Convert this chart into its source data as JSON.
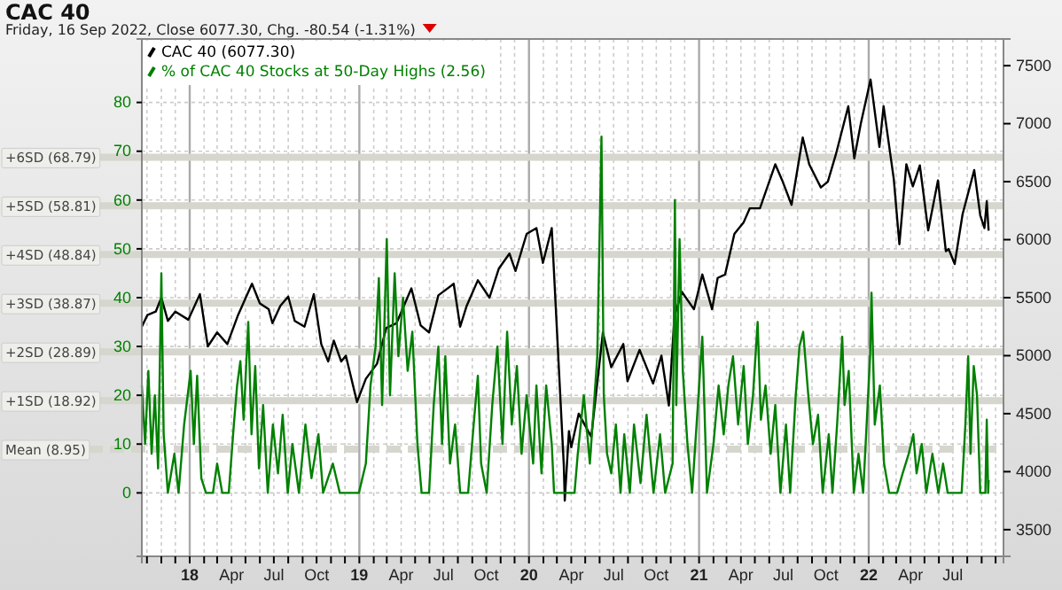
{
  "chart_data": {
    "type": "line",
    "title": "CAC 40",
    "subtitle": "Friday, 16 Sep 2022, Close 6077.30, Chg. -80.54 (-1.31%)",
    "xlim": [
      "2017-09-20",
      "2022-10-18"
    ],
    "xticks": [
      {
        "value": "2017-10-01",
        "label": null
      },
      {
        "value": "2017-11-01",
        "label": null
      },
      {
        "value": "2017-12-01",
        "label": null
      },
      {
        "value": "2018-01-01",
        "label": "18"
      },
      {
        "value": "2018-02-01",
        "label": null
      },
      {
        "value": "2018-03-01",
        "label": null
      },
      {
        "value": "2018-04-01",
        "label": "Apr"
      },
      {
        "value": "2018-05-01",
        "label": null
      },
      {
        "value": "2018-06-01",
        "label": null
      },
      {
        "value": "2018-07-01",
        "label": "Jul"
      },
      {
        "value": "2018-08-01",
        "label": null
      },
      {
        "value": "2018-09-01",
        "label": null
      },
      {
        "value": "2018-10-01",
        "label": "Oct"
      },
      {
        "value": "2018-11-01",
        "label": null
      },
      {
        "value": "2018-12-01",
        "label": null
      },
      {
        "value": "2019-01-01",
        "label": "19"
      },
      {
        "value": "2019-02-01",
        "label": null
      },
      {
        "value": "2019-03-01",
        "label": null
      },
      {
        "value": "2019-04-01",
        "label": "Apr"
      },
      {
        "value": "2019-05-01",
        "label": null
      },
      {
        "value": "2019-06-01",
        "label": null
      },
      {
        "value": "2019-07-01",
        "label": "Jul"
      },
      {
        "value": "2019-08-01",
        "label": null
      },
      {
        "value": "2019-09-01",
        "label": null
      },
      {
        "value": "2019-10-01",
        "label": "Oct"
      },
      {
        "value": "2019-11-01",
        "label": null
      },
      {
        "value": "2019-12-01",
        "label": null
      },
      {
        "value": "2020-01-01",
        "label": "20"
      },
      {
        "value": "2020-02-01",
        "label": null
      },
      {
        "value": "2020-03-01",
        "label": null
      },
      {
        "value": "2020-04-01",
        "label": "Apr"
      },
      {
        "value": "2020-05-01",
        "label": null
      },
      {
        "value": "2020-06-01",
        "label": null
      },
      {
        "value": "2020-07-01",
        "label": "Jul"
      },
      {
        "value": "2020-08-01",
        "label": null
      },
      {
        "value": "2020-09-01",
        "label": null
      },
      {
        "value": "2020-10-01",
        "label": "Oct"
      },
      {
        "value": "2020-11-01",
        "label": null
      },
      {
        "value": "2020-12-01",
        "label": null
      },
      {
        "value": "2021-01-01",
        "label": "21"
      },
      {
        "value": "2021-02-01",
        "label": null
      },
      {
        "value": "2021-03-01",
        "label": null
      },
      {
        "value": "2021-04-01",
        "label": "Apr"
      },
      {
        "value": "2021-05-01",
        "label": null
      },
      {
        "value": "2021-06-01",
        "label": null
      },
      {
        "value": "2021-07-01",
        "label": "Jul"
      },
      {
        "value": "2021-08-01",
        "label": null
      },
      {
        "value": "2021-09-01",
        "label": null
      },
      {
        "value": "2021-10-01",
        "label": "Oct"
      },
      {
        "value": "2021-11-01",
        "label": null
      },
      {
        "value": "2021-12-01",
        "label": null
      },
      {
        "value": "2022-01-01",
        "label": "22"
      },
      {
        "value": "2022-02-01",
        "label": null
      },
      {
        "value": "2022-03-01",
        "label": null
      },
      {
        "value": "2022-04-01",
        "label": "Apr"
      },
      {
        "value": "2022-05-01",
        "label": null
      },
      {
        "value": "2022-06-01",
        "label": null
      },
      {
        "value": "2022-07-01",
        "label": "Jul"
      },
      {
        "value": "2022-08-01",
        "label": null
      },
      {
        "value": "2022-09-01",
        "label": null
      },
      {
        "value": "2022-10-01",
        "label": null
      }
    ],
    "ylim": [
      -13,
      93
    ],
    "yticks": [
      0,
      10,
      20,
      30,
      40,
      50,
      60,
      70,
      80
    ],
    "y2lim": [
      3270,
      7730
    ],
    "y2ticks": [
      3500,
      4000,
      4500,
      5000,
      5500,
      6000,
      6500,
      7000,
      7500
    ],
    "grid": true,
    "legend": "top left",
    "ref_lines": [
      {
        "axis": "y",
        "value": 68.79,
        "label": "+6SD (68.79)",
        "color": "#d6d6ce"
      },
      {
        "axis": "y",
        "value": 58.81,
        "label": "+5SD (58.81)",
        "color": "#d6d6ce"
      },
      {
        "axis": "y",
        "value": 48.84,
        "label": "+4SD (48.84)",
        "color": "#d6d6ce"
      },
      {
        "axis": "y",
        "value": 38.87,
        "label": "+3SD (38.87)",
        "color": "#d6d6ce"
      },
      {
        "axis": "y",
        "value": 28.89,
        "label": "+2SD (28.89)",
        "color": "#d6d6ce"
      },
      {
        "axis": "y",
        "value": 18.92,
        "label": "+1SD (18.92)",
        "color": "#d6d6ce"
      },
      {
        "axis": "y",
        "value": 8.95,
        "label": "Mean (8.95)",
        "color": "#d6d6ce",
        "line_style": "dashed"
      }
    ],
    "series": [
      {
        "name": "CAC 40 (6077.30)",
        "color": "#000000",
        "axis": "y2",
        "x": [
          "2017-09-20",
          "2017-10-02",
          "2017-10-20",
          "2017-11-01",
          "2017-11-15",
          "2017-12-01",
          "2017-12-29",
          "2018-01-23",
          "2018-02-09",
          "2018-03-01",
          "2018-03-23",
          "2018-04-15",
          "2018-05-15",
          "2018-06-01",
          "2018-06-20",
          "2018-06-28",
          "2018-07-15",
          "2018-08-01",
          "2018-08-15",
          "2018-09-05",
          "2018-09-25",
          "2018-10-11",
          "2018-10-26",
          "2018-11-07",
          "2018-11-23",
          "2018-12-03",
          "2018-12-27",
          "2019-01-15",
          "2019-02-08",
          "2019-02-28",
          "2019-03-22",
          "2019-04-23",
          "2019-05-13",
          "2019-05-31",
          "2019-06-20",
          "2019-07-23",
          "2019-08-06",
          "2019-08-20",
          "2019-09-13",
          "2019-10-08",
          "2019-10-28",
          "2019-11-20",
          "2019-12-03",
          "2019-12-27",
          "2020-01-17",
          "2020-01-31",
          "2020-02-19",
          "2020-03-16",
          "2020-03-18",
          "2020-03-27",
          "2020-04-01",
          "2020-04-17",
          "2020-05-14",
          "2020-06-08",
          "2020-06-26",
          "2020-07-22",
          "2020-07-31",
          "2020-08-26",
          "2020-09-24",
          "2020-10-12",
          "2020-10-28",
          "2020-11-09",
          "2020-11-25",
          "2020-12-21",
          "2021-01-08",
          "2021-01-29",
          "2021-02-10",
          "2021-02-26",
          "2021-03-18",
          "2021-04-07",
          "2021-04-20",
          "2021-05-12",
          "2021-06-14",
          "2021-06-30",
          "2021-07-19",
          "2021-08-12",
          "2021-08-26",
          "2021-09-20",
          "2021-10-05",
          "2021-10-22",
          "2021-11-18",
          "2021-12-01",
          "2021-12-15",
          "2022-01-05",
          "2022-01-24",
          "2022-02-02",
          "2022-02-24",
          "2022-03-08",
          "2022-03-23",
          "2022-04-06",
          "2022-04-21",
          "2022-05-09",
          "2022-05-30",
          "2022-06-16",
          "2022-06-22",
          "2022-07-05",
          "2022-07-22",
          "2022-08-16",
          "2022-08-29",
          "2022-09-07",
          "2022-09-12",
          "2022-09-16"
        ],
        "values": [
          5250,
          5350,
          5380,
          5500,
          5300,
          5380,
          5310,
          5530,
          5080,
          5200,
          5100,
          5350,
          5620,
          5450,
          5400,
          5280,
          5430,
          5510,
          5300,
          5250,
          5530,
          5100,
          4950,
          5130,
          4950,
          5000,
          4600,
          4800,
          4930,
          5240,
          5280,
          5580,
          5260,
          5200,
          5520,
          5620,
          5250,
          5430,
          5650,
          5500,
          5750,
          5880,
          5730,
          6050,
          6100,
          5800,
          6100,
          4050,
          3750,
          4350,
          4210,
          4500,
          4300,
          5200,
          4900,
          5100,
          4780,
          5050,
          4760,
          5000,
          4570,
          5340,
          5550,
          5400,
          5700,
          5400,
          5670,
          5700,
          6050,
          6150,
          6270,
          6270,
          6650,
          6500,
          6300,
          6880,
          6650,
          6450,
          6500,
          6730,
          7150,
          6700,
          7000,
          7380,
          6800,
          7150,
          6520,
          5960,
          6650,
          6460,
          6640,
          6080,
          6510,
          5900,
          5920,
          5790,
          6220,
          6600,
          6210,
          6100,
          6330,
          6077
        ]
      },
      {
        "name": "% of CAC 40 Stocks at 50-Day Highs (2.56)",
        "color": "#008000",
        "x": [
          "2017-09-20",
          "2017-09-27",
          "2017-10-04",
          "2017-10-11",
          "2017-10-18",
          "2017-10-25",
          "2017-11-01",
          "2017-11-06",
          "2017-11-15",
          "2017-11-29",
          "2017-12-08",
          "2017-12-20",
          "2018-01-03",
          "2018-01-10",
          "2018-01-17",
          "2018-01-26",
          "2018-02-05",
          "2018-02-20",
          "2018-03-01",
          "2018-03-12",
          "2018-03-26",
          "2018-04-06",
          "2018-04-13",
          "2018-04-20",
          "2018-04-27",
          "2018-05-07",
          "2018-05-14",
          "2018-05-22",
          "2018-05-30",
          "2018-06-08",
          "2018-06-18",
          "2018-06-29",
          "2018-07-10",
          "2018-07-20",
          "2018-07-31",
          "2018-08-10",
          "2018-08-24",
          "2018-09-07",
          "2018-09-20",
          "2018-10-05",
          "2018-10-15",
          "2018-11-05",
          "2018-11-20",
          "2018-12-31",
          "2019-01-15",
          "2019-01-25",
          "2019-02-05",
          "2019-02-12",
          "2019-02-19",
          "2019-03-01",
          "2019-03-08",
          "2019-03-18",
          "2019-03-26",
          "2019-04-05",
          "2019-04-15",
          "2019-04-25",
          "2019-05-06",
          "2019-05-15",
          "2019-05-31",
          "2019-06-10",
          "2019-06-20",
          "2019-06-28",
          "2019-07-05",
          "2019-07-15",
          "2019-07-26",
          "2019-08-06",
          "2019-08-23",
          "2019-09-04",
          "2019-09-13",
          "2019-09-20",
          "2019-10-02",
          "2019-10-14",
          "2019-10-25",
          "2019-11-05",
          "2019-11-15",
          "2019-11-25",
          "2019-12-06",
          "2019-12-16",
          "2019-12-27",
          "2020-01-10",
          "2020-01-17",
          "2020-01-28",
          "2020-02-07",
          "2020-02-19",
          "2020-02-24",
          "2020-04-08",
          "2020-04-15",
          "2020-04-28",
          "2020-05-11",
          "2020-05-27",
          "2020-06-05",
          "2020-06-10",
          "2020-06-17",
          "2020-06-26",
          "2020-07-06",
          "2020-07-16",
          "2020-07-24",
          "2020-08-05",
          "2020-08-14",
          "2020-08-28",
          "2020-09-10",
          "2020-09-25",
          "2020-10-09",
          "2020-10-20",
          "2020-11-05",
          "2020-11-10",
          "2020-11-13",
          "2020-11-20",
          "2020-11-27",
          "2020-12-07",
          "2020-12-17",
          "2021-01-08",
          "2021-01-18",
          "2021-02-01",
          "2021-02-12",
          "2021-02-23",
          "2021-03-05",
          "2021-03-15",
          "2021-03-26",
          "2021-04-07",
          "2021-04-16",
          "2021-04-27",
          "2021-05-07",
          "2021-05-14",
          "2021-05-24",
          "2021-06-04",
          "2021-06-14",
          "2021-06-25",
          "2021-07-07",
          "2021-07-16",
          "2021-07-28",
          "2021-08-05",
          "2021-08-13",
          "2021-08-24",
          "2021-09-03",
          "2021-09-14",
          "2021-09-24",
          "2021-10-07",
          "2021-10-15",
          "2021-10-25",
          "2021-11-05",
          "2021-11-10",
          "2021-11-19",
          "2021-11-30",
          "2021-12-10",
          "2021-12-20",
          "2022-01-04",
          "2022-01-07",
          "2022-01-14",
          "2022-01-25",
          "2022-02-03",
          "2022-02-14",
          "2022-03-03",
          "2022-03-15",
          "2022-03-28",
          "2022-04-07",
          "2022-04-14",
          "2022-04-25",
          "2022-05-05",
          "2022-05-18",
          "2022-05-31",
          "2022-06-10",
          "2022-06-20",
          "2022-07-20",
          "2022-07-28",
          "2022-08-03",
          "2022-08-08",
          "2022-08-15",
          "2022-08-22",
          "2022-08-29",
          "2022-09-09",
          "2022-09-12",
          "2022-09-15",
          "2022-09-16"
        ],
        "values": [
          22,
          10,
          25,
          8,
          20,
          5,
          45,
          12,
          0,
          8,
          0,
          14,
          25,
          10,
          24,
          3,
          0,
          0,
          6,
          0,
          0,
          14,
          22,
          27,
          15,
          35,
          12,
          26,
          5,
          18,
          0,
          14,
          4,
          16,
          0,
          10,
          0,
          14,
          3,
          12,
          0,
          6,
          0,
          0,
          6,
          22,
          30,
          44,
          18,
          52,
          20,
          45,
          28,
          40,
          25,
          33,
          10,
          0,
          0,
          18,
          30,
          10,
          28,
          6,
          14,
          0,
          0,
          14,
          24,
          6,
          0,
          18,
          30,
          10,
          33,
          14,
          26,
          8,
          20,
          6,
          22,
          4,
          22,
          10,
          0,
          0,
          8,
          20,
          6,
          28,
          73,
          20,
          8,
          4,
          14,
          0,
          12,
          0,
          14,
          2,
          16,
          0,
          12,
          0,
          6,
          60,
          18,
          52,
          25,
          10,
          0,
          32,
          0,
          10,
          22,
          12,
          22,
          28,
          14,
          26,
          10,
          20,
          35,
          15,
          22,
          8,
          18,
          0,
          14,
          0,
          20,
          30,
          33,
          20,
          10,
          16,
          0,
          12,
          0,
          14,
          32,
          18,
          25,
          0,
          8,
          0,
          28,
          41,
          14,
          22,
          6,
          0,
          0,
          4,
          8,
          12,
          4,
          10,
          0,
          8,
          0,
          6,
          0,
          0,
          14,
          28,
          8,
          26,
          20,
          0,
          0,
          15,
          0,
          2.6
        ]
      }
    ]
  }
}
